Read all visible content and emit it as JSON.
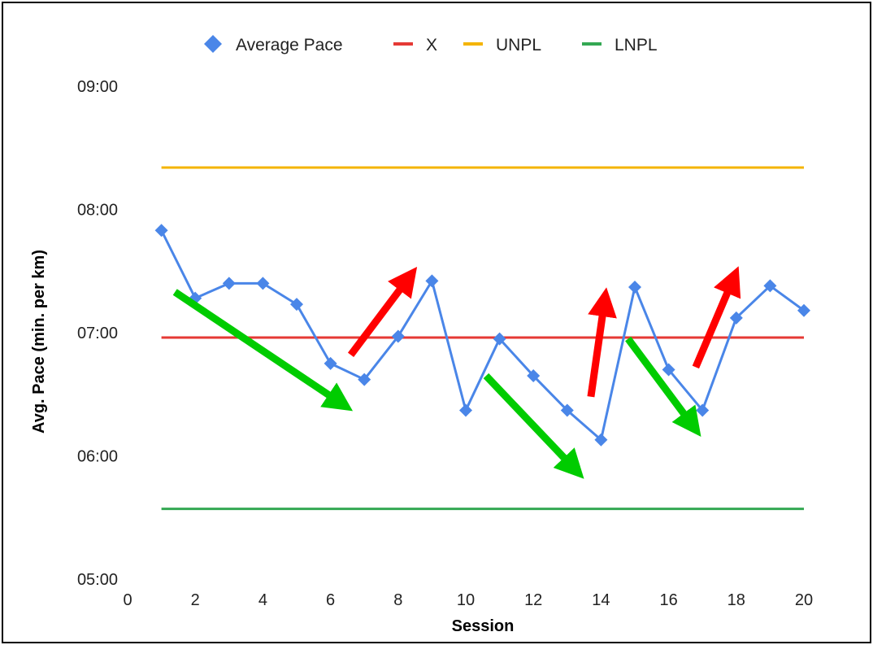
{
  "chart_data": {
    "type": "line",
    "title": "",
    "xlabel": "Session",
    "ylabel": "Avg. Pace (min. per km)",
    "xlim": [
      0,
      20
    ],
    "ylim": [
      5.0,
      9.0
    ],
    "x_ticks": [
      0,
      2,
      4,
      6,
      8,
      10,
      12,
      14,
      16,
      18,
      20
    ],
    "y_ticks": [
      {
        "value": 5.0,
        "label": "05:00"
      },
      {
        "value": 6.0,
        "label": "06:00"
      },
      {
        "value": 7.0,
        "label": "07:00"
      },
      {
        "value": 8.0,
        "label": "08:00"
      },
      {
        "value": 9.0,
        "label": "09:00"
      }
    ],
    "grid": false,
    "legend_position": "top-center",
    "series": [
      {
        "name": "Average Pace",
        "color": "#4a86e8",
        "marker": "diamond",
        "x": [
          1,
          2,
          3,
          4,
          5,
          6,
          7,
          8,
          9,
          10,
          11,
          12,
          13,
          14,
          15,
          16,
          17,
          18,
          19,
          20
        ],
        "values": [
          7.83,
          7.28,
          7.4,
          7.4,
          7.23,
          6.75,
          6.62,
          6.97,
          7.42,
          6.37,
          6.95,
          6.65,
          6.37,
          6.13,
          7.37,
          6.7,
          6.37,
          7.12,
          7.38,
          7.18
        ]
      },
      {
        "name": "X",
        "color": "#e53935",
        "x": [
          1,
          20
        ],
        "values": [
          6.96,
          6.96
        ]
      },
      {
        "name": "UNPL",
        "color": "#f4b400",
        "x": [
          1,
          20
        ],
        "values": [
          8.34,
          8.34
        ]
      },
      {
        "name": "LNPL",
        "color": "#34a853",
        "x": [
          1,
          20
        ],
        "values": [
          5.57,
          5.57
        ]
      }
    ],
    "annotations": [
      {
        "kind": "arrow",
        "color": "#00cc00",
        "from": [
          1.4,
          7.33
        ],
        "to": [
          6.3,
          6.43
        ]
      },
      {
        "kind": "arrow",
        "color": "#ff0000",
        "from": [
          6.6,
          6.82
        ],
        "to": [
          8.3,
          7.44
        ]
      },
      {
        "kind": "arrow",
        "color": "#00cc00",
        "from": [
          10.6,
          6.65
        ],
        "to": [
          13.2,
          5.9
        ]
      },
      {
        "kind": "arrow",
        "color": "#ff0000",
        "from": [
          13.7,
          6.48
        ],
        "to": [
          14.1,
          7.25
        ]
      },
      {
        "kind": "arrow",
        "color": "#00cc00",
        "from": [
          14.8,
          6.95
        ],
        "to": [
          16.7,
          6.25
        ]
      },
      {
        "kind": "arrow",
        "color": "#ff0000",
        "from": [
          16.8,
          6.72
        ],
        "to": [
          17.9,
          7.43
        ]
      }
    ]
  }
}
